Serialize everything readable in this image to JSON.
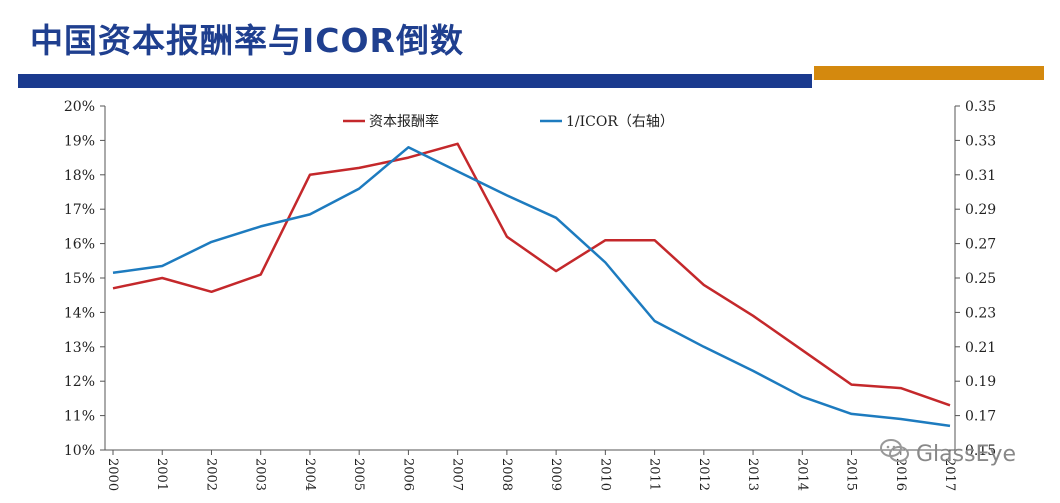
{
  "title": "中国资本报酬率与ICOR倒数",
  "watermark": "GlassEye",
  "colors": {
    "title": "#1f3f8f",
    "bar_blue": "#1a3a8e",
    "bar_orange": "#d4890e",
    "series_red": "#c4282b",
    "series_blue": "#1d7bbf"
  },
  "chart_data": {
    "type": "line",
    "title": "",
    "x": [
      "2000",
      "2001",
      "2002",
      "2003",
      "2004",
      "2005",
      "2006",
      "2007",
      "2008",
      "2009",
      "2010",
      "2011",
      "2012",
      "2013",
      "2014",
      "2015",
      "2016",
      "2017"
    ],
    "y_left": {
      "ticks": [
        "20%",
        "19%",
        "18%",
        "17%",
        "16%",
        "15%",
        "14%",
        "13%",
        "12%",
        "11%",
        "10%"
      ],
      "lim": [
        10,
        20
      ],
      "unit": "%"
    },
    "y_right": {
      "ticks": [
        "0.35",
        "0.33",
        "0.31",
        "0.29",
        "0.27",
        "0.25",
        "0.23",
        "0.21",
        "0.19",
        "0.17",
        "0.15"
      ],
      "lim": [
        0.15,
        0.35
      ]
    },
    "legend_position": "top-center",
    "series": [
      {
        "name": "资本报酬率",
        "axis": "left",
        "color": "#c4282b",
        "values": [
          14.7,
          15.0,
          14.6,
          15.1,
          18.0,
          18.2,
          18.5,
          18.9,
          16.2,
          15.2,
          16.1,
          16.1,
          14.8,
          13.9,
          12.9,
          11.9,
          11.8,
          11.3
        ]
      },
      {
        "name": "1/ICOR（右轴）",
        "axis": "right",
        "color": "#1d7bbf",
        "values": [
          0.253,
          0.257,
          0.271,
          0.28,
          0.287,
          0.302,
          0.326,
          0.312,
          0.298,
          0.285,
          0.259,
          0.225,
          0.21,
          0.196,
          0.181,
          0.171,
          0.168,
          0.164
        ]
      }
    ]
  }
}
